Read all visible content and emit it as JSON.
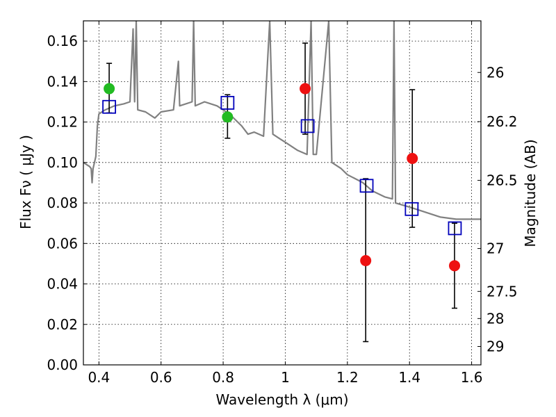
{
  "chart_data": {
    "type": "scatter",
    "xlabel": "Wavelength  λ (μm)",
    "ylabel": "Flux  Fν  ( μJy )",
    "ylabel_right": "Magnitude (AB)",
    "xlim": [
      0.35,
      1.63
    ],
    "ylim": [
      0.0,
      0.17
    ],
    "x_ticks": [
      0.4,
      0.6,
      0.8,
      1.0,
      1.2,
      1.4,
      1.6
    ],
    "x_tick_labels": [
      "0.4",
      "0.6",
      "0.8",
      "1",
      "1.2",
      "1.4",
      "1.6"
    ],
    "y_ticks": [
      0.0,
      0.02,
      0.04,
      0.06,
      0.08,
      0.1,
      0.12,
      0.14,
      0.16
    ],
    "y_tick_labels": [
      "0.00",
      "0.02",
      "0.04",
      "0.06",
      "0.08",
      "0.10",
      "0.12",
      "0.14",
      "0.16"
    ],
    "right_ticks": [
      {
        "label": "26",
        "flux": 0.1445
      },
      {
        "label": "26.2",
        "flux": 0.1202
      },
      {
        "label": "26.5",
        "flux": 0.0912
      },
      {
        "label": "27",
        "flux": 0.0575
      },
      {
        "label": "27.5",
        "flux": 0.0363
      },
      {
        "label": "28",
        "flux": 0.0229
      },
      {
        "label": "29",
        "flux": 0.0091
      }
    ],
    "grid": true,
    "colors": {
      "model": "#808080",
      "green": "#22bb22",
      "red": "#ee1111",
      "square": "#0000bb",
      "errorbar": "#000000"
    },
    "model_spectrum": [
      [
        0.35,
        0.1
      ],
      [
        0.37,
        0.098
      ],
      [
        0.375,
        0.097
      ],
      [
        0.378,
        0.09
      ],
      [
        0.381,
        0.097
      ],
      [
        0.39,
        0.103
      ],
      [
        0.395,
        0.118
      ],
      [
        0.4,
        0.124
      ],
      [
        0.42,
        0.126
      ],
      [
        0.45,
        0.128
      ],
      [
        0.48,
        0.129
      ],
      [
        0.5,
        0.13
      ],
      [
        0.51,
        0.166
      ],
      [
        0.515,
        0.13
      ],
      [
        0.52,
        0.17
      ],
      [
        0.525,
        0.126
      ],
      [
        0.55,
        0.125
      ],
      [
        0.58,
        0.122
      ],
      [
        0.6,
        0.125
      ],
      [
        0.64,
        0.126
      ],
      [
        0.656,
        0.15
      ],
      [
        0.66,
        0.128
      ],
      [
        0.7,
        0.13
      ],
      [
        0.705,
        0.17
      ],
      [
        0.71,
        0.128
      ],
      [
        0.74,
        0.13
      ],
      [
        0.78,
        0.128
      ],
      [
        0.8,
        0.126
      ],
      [
        0.82,
        0.124
      ],
      [
        0.86,
        0.118
      ],
      [
        0.88,
        0.114
      ],
      [
        0.9,
        0.115
      ],
      [
        0.93,
        0.113
      ],
      [
        0.95,
        0.17
      ],
      [
        0.96,
        0.114
      ],
      [
        0.98,
        0.112
      ],
      [
        1.0,
        0.11
      ],
      [
        1.04,
        0.106
      ],
      [
        1.07,
        0.104
      ],
      [
        1.083,
        0.17
      ],
      [
        1.09,
        0.104
      ],
      [
        1.1,
        0.104
      ],
      [
        1.14,
        0.17
      ],
      [
        1.15,
        0.1
      ],
      [
        1.18,
        0.097
      ],
      [
        1.2,
        0.094
      ],
      [
        1.25,
        0.09
      ],
      [
        1.28,
        0.086
      ],
      [
        1.32,
        0.083
      ],
      [
        1.345,
        0.082
      ],
      [
        1.35,
        0.17
      ],
      [
        1.355,
        0.08
      ],
      [
        1.4,
        0.078
      ],
      [
        1.44,
        0.076
      ],
      [
        1.5,
        0.073
      ],
      [
        1.55,
        0.072
      ],
      [
        1.63,
        0.072
      ]
    ],
    "series": [
      {
        "marker": "circle",
        "color": "green",
        "points": [
          {
            "x": 0.433,
            "y": 0.1365,
            "err_low": 0.1245,
            "err_high": 0.149
          },
          {
            "x": 0.814,
            "y": 0.1225,
            "err_low": 0.112,
            "err_high": 0.1335
          }
        ]
      },
      {
        "marker": "circle",
        "color": "red",
        "points": [
          {
            "x": 1.064,
            "y": 0.1365,
            "err_low": 0.114,
            "err_high": 0.159
          },
          {
            "x": 1.259,
            "y": 0.0515,
            "err_low": 0.0115,
            "err_high": 0.092
          },
          {
            "x": 1.409,
            "y": 0.102,
            "err_low": 0.068,
            "err_high": 0.136
          },
          {
            "x": 1.545,
            "y": 0.049,
            "err_low": 0.028,
            "err_high": 0.07
          }
        ]
      },
      {
        "marker": "square",
        "color": "square",
        "points": [
          {
            "x": 0.433,
            "y": 0.1275
          },
          {
            "x": 0.814,
            "y": 0.1295
          },
          {
            "x": 1.072,
            "y": 0.118
          },
          {
            "x": 1.262,
            "y": 0.0885
          },
          {
            "x": 1.407,
            "y": 0.077
          },
          {
            "x": 1.546,
            "y": 0.0675
          }
        ]
      }
    ]
  }
}
